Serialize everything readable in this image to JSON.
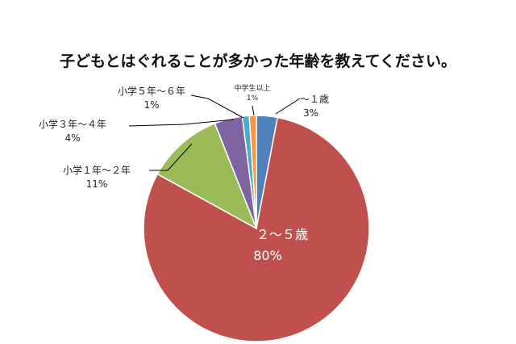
{
  "chart_data": {
    "type": "pie",
    "title": "子どもとはぐれることが多かった年齢を教えてください。",
    "legend": "none",
    "slices": [
      {
        "label": "～１歳",
        "value": 3,
        "pct_label": "3%",
        "color": "#4f81bd"
      },
      {
        "label": "２～５歳",
        "value": 80,
        "pct_label": "80%",
        "color": "#c0504d"
      },
      {
        "label": "小学１年～２年",
        "value": 11,
        "pct_label": "11%",
        "color": "#9bbb59"
      },
      {
        "label": "小学３年～４年",
        "value": 4,
        "pct_label": "4%",
        "color": "#8064a2"
      },
      {
        "label": "小学５年～６年",
        "value": 1,
        "pct_label": "1%",
        "color": "#4bacc6"
      },
      {
        "label": "中学生以上",
        "value": 1,
        "pct_label": "1%",
        "color": "#f79646"
      }
    ]
  }
}
